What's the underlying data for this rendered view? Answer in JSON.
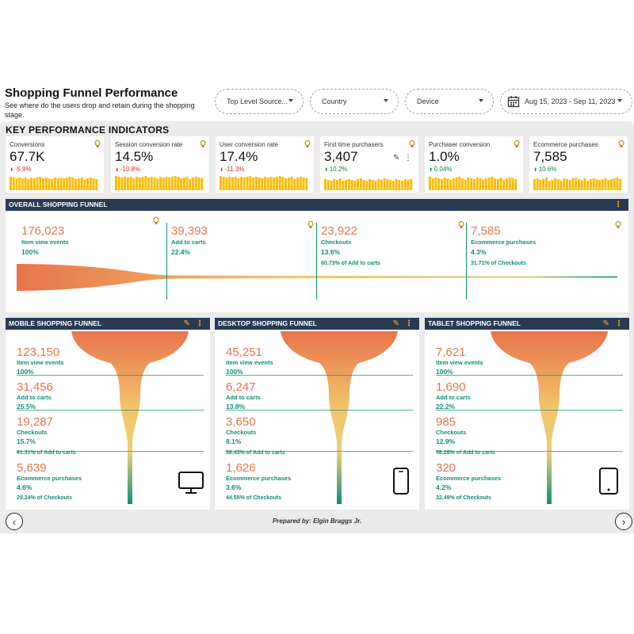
{
  "header": {
    "title": "Shopping Funnel Performance",
    "subtitle": "See where do the users drop and retain during the shopping stage."
  },
  "filters": {
    "source": "Top Level Source...",
    "country": "Country",
    "device": "Device",
    "date_range": "Aug 15, 2023 - Sep 11, 2023"
  },
  "kpi_heading": "KEY PERFORMANCE INDICATORS",
  "kpis": [
    {
      "label": "Conversions",
      "value": "67.7K",
      "delta": "-5.9%",
      "direction": "down"
    },
    {
      "label": "Session conversion rate",
      "value": "14.5%",
      "delta": "-10.8%",
      "direction": "down"
    },
    {
      "label": "User conversion rate",
      "value": "17.4%",
      "delta": "-11.3%",
      "direction": "down"
    },
    {
      "label": "First time purchasers",
      "value": "3,407",
      "delta": "10.2%",
      "direction": "up"
    },
    {
      "label": "Purchaser conversion",
      "value": "1.0%",
      "delta": "0.04%",
      "direction": "up"
    },
    {
      "label": "Ecommerce purchases",
      "value": "7,585",
      "delta": "10.6%",
      "direction": "up"
    }
  ],
  "overall": {
    "title": "OVERALL SHOPPING FUNNEL",
    "stages": [
      {
        "value": "176,023",
        "label": "Item view events",
        "pct": "100%",
        "sub": ""
      },
      {
        "value": "39,393",
        "label": "Add to carts",
        "pct": "22.4%",
        "sub": ""
      },
      {
        "value": "23,922",
        "label": "Checkouts",
        "pct": "13.6%",
        "sub": "60.73% of Add to carts"
      },
      {
        "value": "7,585",
        "label": "Ecommerce purchases",
        "pct": "4.3%",
        "sub": "31.71% of Checkouts"
      }
    ]
  },
  "devices": [
    {
      "title": "MOBILE SHOPPING FUNNEL",
      "icon": "desktop-monitor-icon",
      "stages": [
        {
          "value": "123,150",
          "label": "Item view events",
          "pct": "100%"
        },
        {
          "value": "31,456",
          "label": "Add to carts",
          "pct": "25.5%"
        },
        {
          "value": "19,287",
          "label": "Checkouts",
          "pct": "15.7%",
          "sub": "61.31% of Add to carts"
        },
        {
          "value": "5,639",
          "label": "Ecommerce purchases",
          "pct": "4.6%",
          "sub": "29.24% of Checkouts"
        }
      ]
    },
    {
      "title": "DESKTOP SHOPPING FUNNEL",
      "icon": "smartphone-icon",
      "stages": [
        {
          "value": "45,251",
          "label": "Item view events",
          "pct": "100%"
        },
        {
          "value": "6,247",
          "label": "Add to carts",
          "pct": "13.8%"
        },
        {
          "value": "3,650",
          "label": "Checkouts",
          "pct": "8.1%",
          "sub": "58.43% of Add to carts"
        },
        {
          "value": "1,626",
          "label": "Ecommerce purchases",
          "pct": "3.6%",
          "sub": "44.55% of Checkouts"
        }
      ]
    },
    {
      "title": "TABLET SHOPPING FUNNEL",
      "icon": "tablet-icon",
      "stages": [
        {
          "value": "7,621",
          "label": "Item view events",
          "pct": "100%"
        },
        {
          "value": "1,690",
          "label": "Add to carts",
          "pct": "22.2%"
        },
        {
          "value": "985",
          "label": "Checkouts",
          "pct": "12.9%",
          "sub": "58.28% of Add to carts"
        },
        {
          "value": "320",
          "label": "Ecommerce purchases",
          "pct": "4.2%",
          "sub": "32.49% of Checkouts"
        }
      ]
    }
  ],
  "footer": {
    "prepared_by": "Prepared by: Elgin Braggs Jr."
  },
  "colors": {
    "accent": "#fbbc04",
    "funnel_top": "#e8744c",
    "funnel_mid": "#f2c56b",
    "funnel_bottom": "#138d75",
    "header_bar": "#2a3a55"
  }
}
